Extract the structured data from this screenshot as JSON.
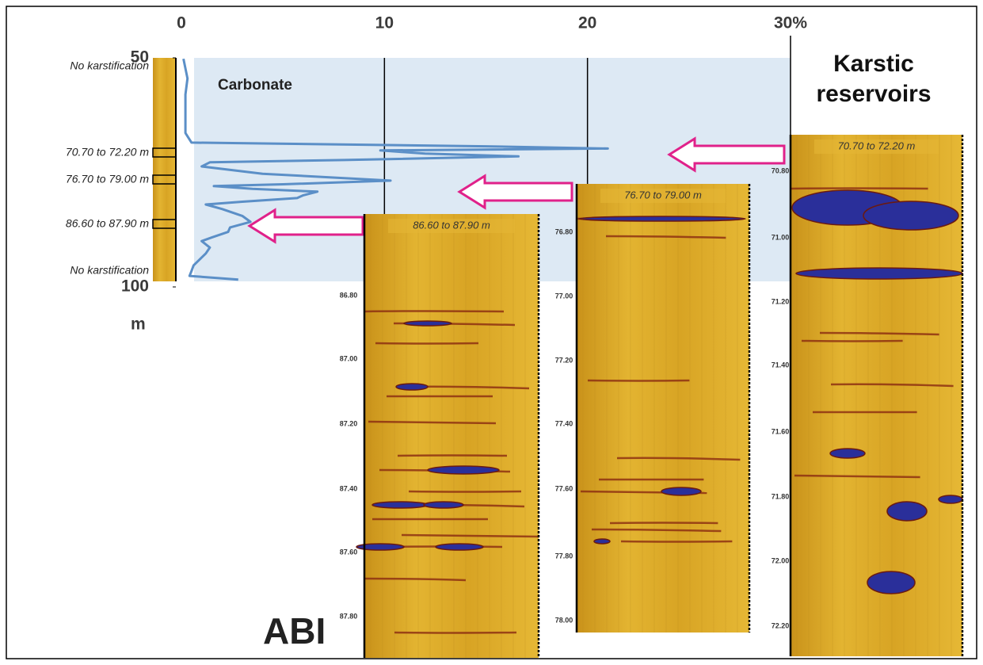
{
  "chart_data": {
    "type": "line",
    "annotations": [
      "Carbonate",
      "Karstic reservoirs",
      "ABI"
    ],
    "ylabel": "m",
    "xlim": [
      0,
      30
    ],
    "xticks": [
      0,
      10,
      20,
      {
        "value": 30,
        "label": "30%"
      }
    ],
    "ylim": [
      50,
      100
    ],
    "yticks": [
      50,
      100
    ],
    "y": [
      50.2,
      54.5,
      58,
      66.4,
      68.5,
      69.3,
      69.8,
      70.2,
      70.9,
      71.5,
      72.3,
      72.8,
      73.7,
      75.3,
      76.8,
      77.6,
      78.0,
      78.6,
      79.2,
      80.0,
      80.6,
      81.4,
      82.0,
      83.0,
      84.5,
      85.8,
      87.0,
      88.0,
      89.2,
      90.0,
      91.4,
      92.7,
      94.0,
      95.3,
      96.5,
      97.6,
      98.4
    ],
    "series": [
      {
        "color": "#5b8fc7",
        "values": [
          0.1,
          0.3,
          0.2,
          0.2,
          0.5,
          15.0,
          21.0,
          9.8,
          12.0,
          16.6,
          8.0,
          1.4,
          1.0,
          4.0,
          10.3,
          5.0,
          1.6,
          3.5,
          6.7,
          6.0,
          5.7,
          3.0,
          1.2,
          2.0,
          3.0,
          3.4,
          2.4,
          2.3,
          1.5,
          1.0,
          1.4,
          1.2,
          0.9,
          0.6,
          0.5,
          0.4,
          2.8
        ]
      }
    ]
  },
  "log_labels": [
    "No karstification",
    "70.70 to 72.20 m",
    "76.70 to 79.00 m",
    "86.60 to 87.90 m",
    "No karstification"
  ],
  "images": [
    {
      "title": "86.60 to 87.90 m",
      "ticks": [
        "86.80",
        "87.00",
        "87.20",
        "87.40",
        "87.60",
        "87.80"
      ]
    },
    {
      "title": "76.70 to 79.00 m",
      "ticks": [
        "76.80",
        "77.00",
        "77.20",
        "77.40",
        "77.60",
        "77.80",
        "78.00"
      ]
    },
    {
      "title": "70.70 to 72.20 m",
      "ticks": [
        "70.80",
        "71.00",
        "71.20",
        "71.40",
        "71.60",
        "71.80",
        "72.00",
        "72.20"
      ]
    }
  ]
}
